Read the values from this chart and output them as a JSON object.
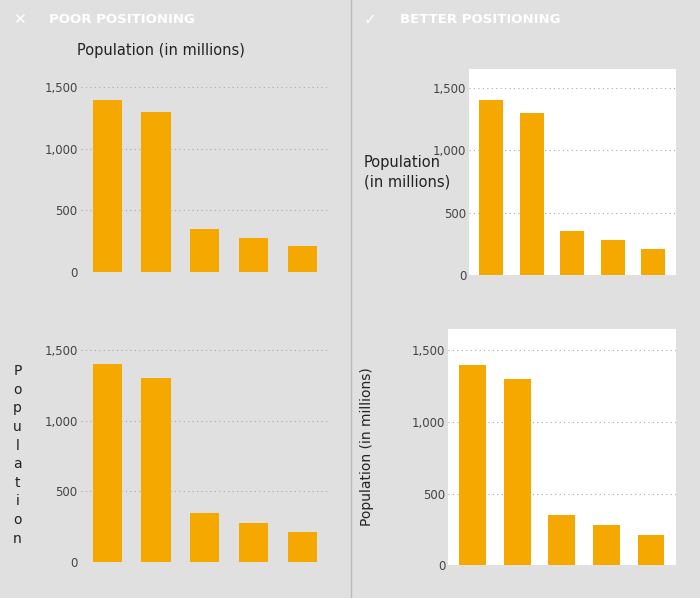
{
  "bar_values": [
    1400,
    1300,
    350,
    280,
    210
  ],
  "bar_color": "#F5A800",
  "bar_positions": [
    0,
    1,
    2,
    3,
    4
  ],
  "ylim": [
    0,
    1650
  ],
  "yticks": [
    0,
    500,
    1000,
    1500
  ],
  "ytick_labels": [
    "0",
    "500",
    "1,000",
    "1,500"
  ],
  "left_bg": "#E0E0E0",
  "right_bg": "#FFFFFF",
  "header_left_bg": "#C8C8C8",
  "header_right_bg": "#7DBF44",
  "header_left_text": "POOR POSITIONING",
  "header_right_text": "BETTER POSITIONING",
  "header_text_color": "#FFFFFF",
  "header_font_size": 9.5,
  "title_top_left": "Population (in millions)",
  "title_mid_right_line1": "Population",
  "title_mid_right_line2": "(in millions)",
  "title_bot_left_letters": [
    "P",
    "o",
    "p",
    "u",
    "l",
    "a",
    "t",
    "i",
    "o",
    "n"
  ],
  "title_bot_right": "Population (in millions)",
  "grid_color": "#AAAAAA",
  "bar_width": 0.6,
  "tick_font_size": 8.5,
  "label_font_size": 10.5
}
